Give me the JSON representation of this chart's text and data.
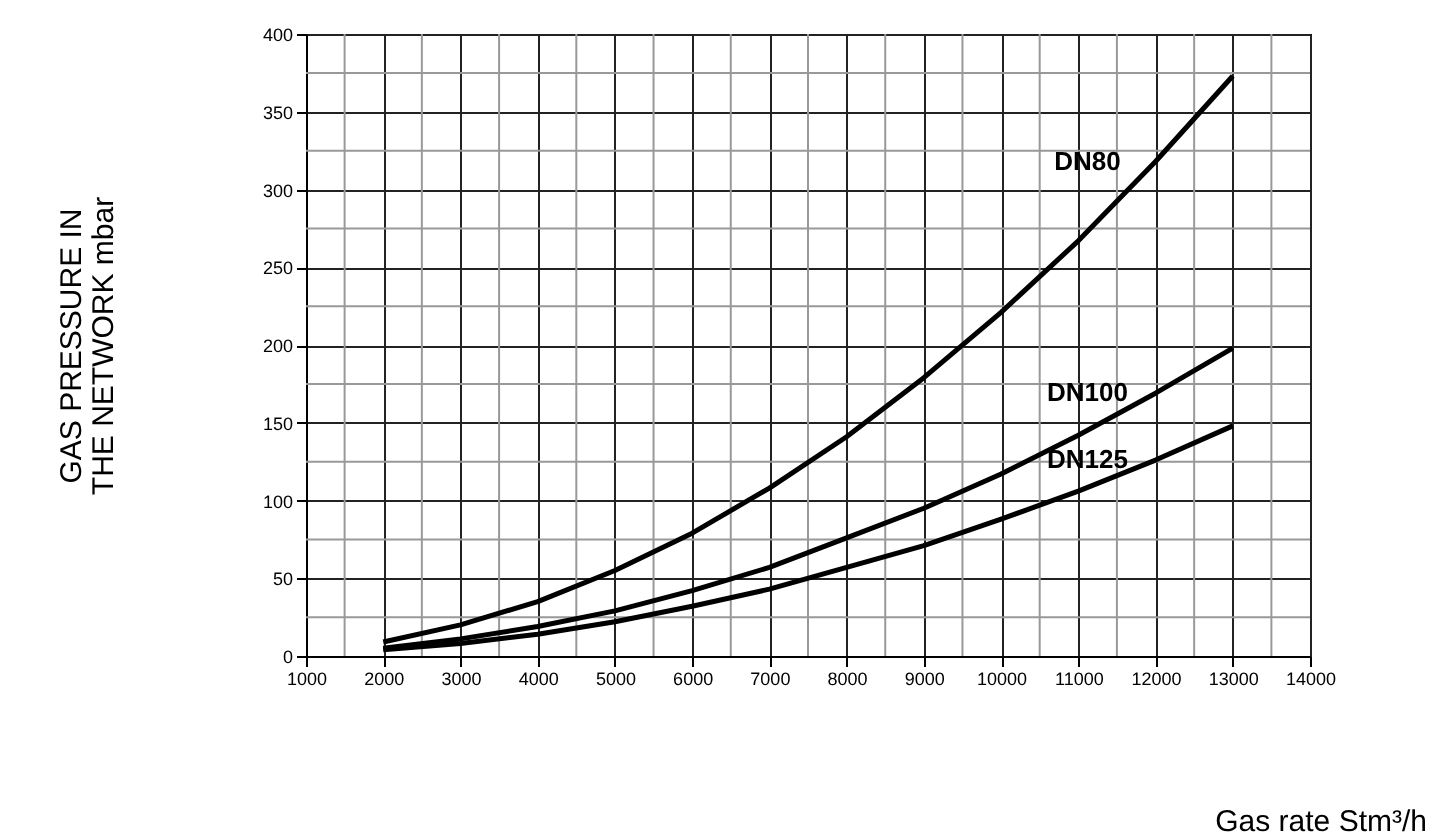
{
  "chart_data": {
    "type": "line",
    "xlabel": "Gas rate  Stm³/h",
    "ylabel": "GAS PRESSURE IN\nTHE NETWORK mbar",
    "x": [
      2000,
      3000,
      4000,
      5000,
      6000,
      7000,
      8000,
      9000,
      10000,
      11000,
      12000,
      13000
    ],
    "series": [
      {
        "name": "DN80",
        "color": "#000000",
        "values": [
          9,
          20,
          35,
          55,
          79,
          108,
          141,
          179,
          221,
          267,
          318,
          373
        ]
      },
      {
        "name": "DN100",
        "color": "#000000",
        "values": [
          5,
          11,
          19,
          29,
          42,
          57,
          76,
          95,
          117,
          142,
          169,
          198
        ]
      },
      {
        "name": "DN125",
        "color": "#000000",
        "values": [
          4,
          8,
          14,
          22,
          32,
          43,
          57,
          71,
          88,
          106,
          126,
          148
        ]
      }
    ],
    "xlim": [
      1000,
      14000
    ],
    "xticks": [
      1000,
      2000,
      3000,
      4000,
      5000,
      6000,
      7000,
      8000,
      9000,
      10000,
      11000,
      12000,
      13000,
      14000
    ],
    "ylim": [
      0,
      400
    ],
    "yticks": [
      0,
      50,
      100,
      150,
      200,
      250,
      300,
      350,
      400
    ],
    "grid": true,
    "marker": "none",
    "line_style": "solid"
  }
}
